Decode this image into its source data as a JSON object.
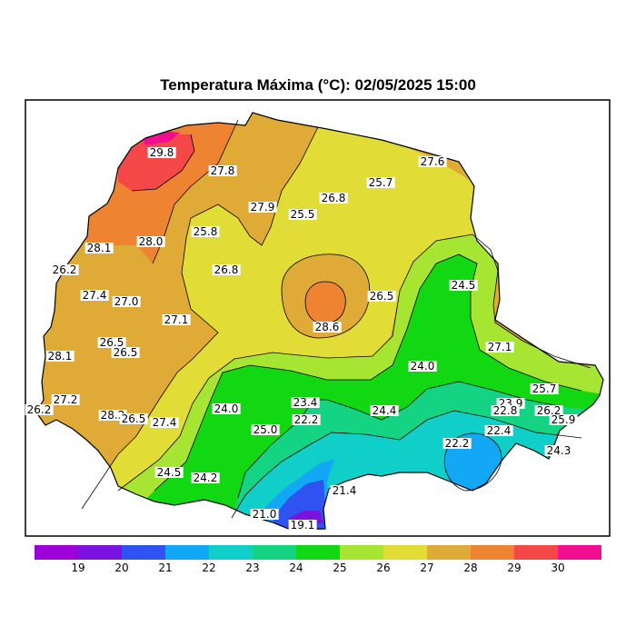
{
  "title": "Temperatura Máxima (°C): 02/05/2025 15:00",
  "colors": {
    "c18": "#9e00d8",
    "c19": "#7a12e0",
    "c20": "#2f52f0",
    "c21": "#12a8f6",
    "c22": "#10cfc9",
    "c23": "#14d484",
    "c24": "#12d814",
    "c25": "#a6e632",
    "c26": "#e2dc36",
    "c27": "#e0aa36",
    "c28": "#ee8432",
    "c29": "#f44848",
    "c30": "#f20e90"
  },
  "station_values": [
    {
      "id": "s1",
      "value": "29.8"
    },
    {
      "id": "s2",
      "value": "27.8"
    },
    {
      "id": "s3",
      "value": "27.6"
    },
    {
      "id": "s4",
      "value": "25.7"
    },
    {
      "id": "s5",
      "value": "26.8"
    },
    {
      "id": "s6",
      "value": "27.9"
    },
    {
      "id": "s7",
      "value": "25.5"
    },
    {
      "id": "s8",
      "value": "25.8"
    },
    {
      "id": "s9",
      "value": "28.1"
    },
    {
      "id": "s10",
      "value": "28.0"
    },
    {
      "id": "s11",
      "value": "26.2"
    },
    {
      "id": "s12",
      "value": "26.8"
    },
    {
      "id": "s13",
      "value": "27.4"
    },
    {
      "id": "s14",
      "value": "27.0"
    },
    {
      "id": "s15",
      "value": "26.5"
    },
    {
      "id": "s16",
      "value": "24.5"
    },
    {
      "id": "s17",
      "value": "27.1"
    },
    {
      "id": "s18",
      "value": "28.6"
    },
    {
      "id": "s19",
      "value": "26.5"
    },
    {
      "id": "s20",
      "value": "26.5"
    },
    {
      "id": "s21",
      "value": "27.1"
    },
    {
      "id": "s22",
      "value": "28.1"
    },
    {
      "id": "s23",
      "value": "24.0"
    },
    {
      "id": "s24",
      "value": "27.2"
    },
    {
      "id": "s25",
      "value": "26.2"
    },
    {
      "id": "s26",
      "value": "28.2"
    },
    {
      "id": "s27",
      "value": "26.5"
    },
    {
      "id": "s28",
      "value": "27.4"
    },
    {
      "id": "s29",
      "value": "24.0"
    },
    {
      "id": "s30",
      "value": "23.4"
    },
    {
      "id": "s31",
      "value": "24.4"
    },
    {
      "id": "s32",
      "value": "25.7"
    },
    {
      "id": "s33",
      "value": "23.9"
    },
    {
      "id": "s34",
      "value": "22.8"
    },
    {
      "id": "s35",
      "value": "26.2"
    },
    {
      "id": "s36",
      "value": "25.9"
    },
    {
      "id": "s37",
      "value": "22.2"
    },
    {
      "id": "s38",
      "value": "25.0"
    },
    {
      "id": "s39",
      "value": "22.4"
    },
    {
      "id": "s40",
      "value": "22.2"
    },
    {
      "id": "s41",
      "value": "24.3"
    },
    {
      "id": "s42",
      "value": "24.5"
    },
    {
      "id": "s43",
      "value": "24.2"
    },
    {
      "id": "s44",
      "value": "21.4"
    },
    {
      "id": "s45",
      "value": "21.0"
    },
    {
      "id": "s46",
      "value": "19.1"
    }
  ],
  "legend": {
    "colors": [
      "#9e00d8",
      "#7a12e0",
      "#2f52f0",
      "#12a8f6",
      "#10cfc9",
      "#14d484",
      "#12d814",
      "#a6e632",
      "#e2dc36",
      "#e0aa36",
      "#ee8432",
      "#f44848",
      "#f20e90"
    ],
    "ticks": [
      "19",
      "20",
      "21",
      "22",
      "23",
      "24",
      "25",
      "26",
      "27",
      "28",
      "29",
      "30"
    ]
  }
}
